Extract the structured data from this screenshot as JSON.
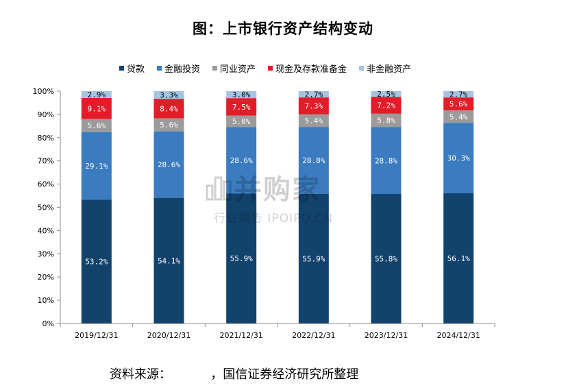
{
  "title": "图：上市银行资产结构变动",
  "source": "资料来源：          ，国信证券经济研究所整理",
  "watermark": {
    "main": "并购家",
    "sub": "行业报告 IPOIPO.CN"
  },
  "colors": {
    "loans": "#12436D",
    "financial_investment": "#3B7BBF",
    "interbank": "#9B9B9B",
    "cash_reserve": "#E21C28",
    "non_financial": "#A5C4E2"
  },
  "chart_data": {
    "type": "bar",
    "stacked": true,
    "categories": [
      "2019/12/31",
      "2020/12/31",
      "2021/12/31",
      "2022/12/31",
      "2023/12/31",
      "2024/12/31"
    ],
    "series": [
      {
        "name": "贷款",
        "key": "loans",
        "values": [
          53.2,
          54.1,
          55.9,
          55.9,
          55.8,
          56.1
        ],
        "labels": [
          "53.2%",
          "54.1%",
          "55.9%",
          "55.9%",
          "55.8%",
          "56.1%"
        ]
      },
      {
        "name": "金融投资",
        "key": "financial_investment",
        "values": [
          29.1,
          28.6,
          28.6,
          28.8,
          28.8,
          30.3
        ],
        "labels": [
          "29.1%",
          "28.6%",
          "28.6%",
          "28.8%",
          "28.8%",
          "30.3%"
        ]
      },
      {
        "name": "同业资产",
        "key": "interbank",
        "values": [
          5.6,
          5.6,
          5.0,
          5.4,
          5.8,
          5.4
        ],
        "labels": [
          "5.6%",
          "5.6%",
          "5.0%",
          "5.4%",
          "5.8%",
          "5.4%"
        ]
      },
      {
        "name": "现金及存款准备金",
        "key": "cash_reserve",
        "values": [
          9.1,
          8.4,
          7.5,
          7.3,
          7.2,
          5.6
        ],
        "labels": [
          "9.1%",
          "8.4%",
          "7.5%",
          "7.3%",
          "7.2%",
          "5.6%"
        ]
      },
      {
        "name": "非金融资产",
        "key": "non_financial",
        "values": [
          2.9,
          3.3,
          3.0,
          2.7,
          2.5,
          2.7
        ],
        "labels": [
          "2.9%",
          "3.3%",
          "3.0%",
          "2.7%",
          "2.5%",
          "2.7%"
        ]
      }
    ],
    "yticks": [
      "0%",
      "10%",
      "20%",
      "30%",
      "40%",
      "50%",
      "60%",
      "70%",
      "80%",
      "90%",
      "100%"
    ],
    "ylim": [
      0,
      100
    ],
    "grid": false,
    "legend_position": "top"
  }
}
